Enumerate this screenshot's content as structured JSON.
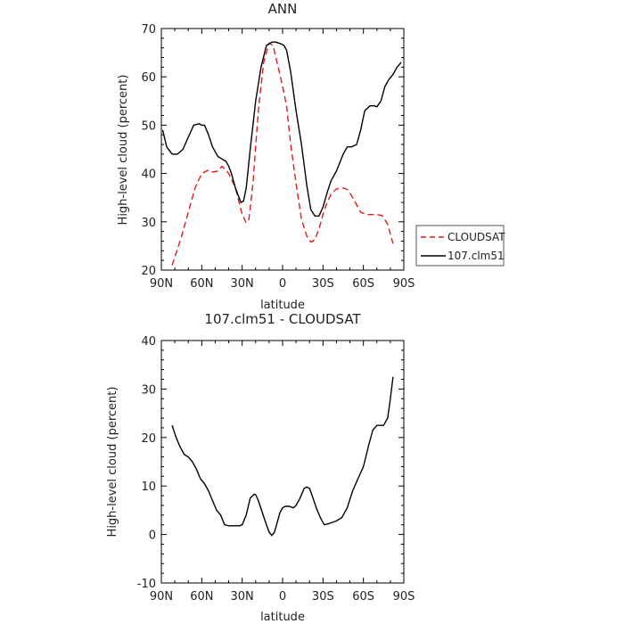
{
  "chart_data": [
    {
      "type": "line",
      "title": "ANN",
      "xlabel": "latitude",
      "ylabel": "High-level cloud (percent)",
      "xlim": [
        -90,
        90
      ],
      "ylim": [
        20,
        70
      ],
      "x_ticks": [
        -90,
        -60,
        -30,
        0,
        30,
        60,
        90
      ],
      "x_tick_labels": [
        "90N",
        "60N",
        "30N",
        "0",
        "30S",
        "60S",
        "90S"
      ],
      "y_ticks": [
        20,
        30,
        40,
        50,
        60,
        70
      ],
      "y_tick_labels": [
        "20",
        "30",
        "40",
        "50",
        "60",
        "70"
      ],
      "grid": false,
      "legend_position": "right",
      "series": [
        {
          "name": "CLOUDSAT",
          "color": "#e41a1c",
          "dash": "dashed",
          "x": [
            -82,
            -75,
            -70,
            -65,
            -60,
            -55,
            -52,
            -48,
            -45,
            -40,
            -35,
            -30,
            -27,
            -25,
            -22,
            -18,
            -14,
            -10,
            -7,
            -5,
            -2,
            0,
            3,
            6,
            10,
            14,
            18,
            21,
            24,
            27,
            30,
            33,
            36,
            40,
            45,
            48,
            51,
            54,
            58,
            62,
            66,
            70,
            74,
            78,
            82
          ],
          "y": [
            21,
            27,
            32,
            37,
            40,
            40.7,
            40.3,
            40.5,
            41.5,
            40,
            37,
            31.5,
            29.8,
            30.5,
            38,
            53,
            63,
            67,
            66.5,
            64,
            60.5,
            58,
            54,
            46,
            38,
            30.5,
            27,
            25.8,
            26.3,
            28.5,
            31.5,
            34,
            35.7,
            36.8,
            37,
            36.7,
            35.5,
            34,
            32,
            31.5,
            31.5,
            31.5,
            31.3,
            29.5,
            25.5
          ]
        },
        {
          "name": "107.clm51",
          "color": "#000000",
          "dash": "solid",
          "x": [
            -89,
            -86,
            -82,
            -78,
            -74,
            -70,
            -66,
            -62,
            -60,
            -58,
            -55,
            -52,
            -48,
            -45,
            -42,
            -40,
            -38,
            -35,
            -31,
            -29,
            -27,
            -24,
            -20,
            -16,
            -12,
            -8,
            -5,
            -3,
            -1,
            1,
            3,
            6,
            10,
            14,
            18,
            21,
            24,
            27,
            30,
            33,
            36,
            40,
            45,
            48,
            51,
            55,
            58,
            61,
            65,
            68,
            70,
            73,
            76,
            79,
            82,
            85,
            88
          ],
          "y": [
            49,
            45.5,
            44,
            44,
            45,
            47.5,
            50,
            50.3,
            50,
            50,
            48,
            45.5,
            43.5,
            43,
            42.5,
            41.5,
            40,
            37,
            34,
            34.3,
            37,
            45,
            55,
            62,
            66.5,
            67.2,
            67.2,
            67,
            66.8,
            66.5,
            65.5,
            61,
            53,
            46,
            37.5,
            32.5,
            31.2,
            31.2,
            33,
            36,
            38.5,
            40.5,
            44,
            45.5,
            45.5,
            46,
            49,
            53,
            54,
            54,
            53.8,
            55,
            58,
            59.5,
            60.5,
            62,
            63
          ]
        }
      ]
    },
    {
      "type": "line",
      "title": "107.clm51 - CLOUDSAT",
      "xlabel": "latitude",
      "ylabel": "High-level cloud (percent)",
      "xlim": [
        -90,
        90
      ],
      "ylim": [
        -10,
        40
      ],
      "x_ticks": [
        -90,
        -60,
        -30,
        0,
        30,
        60,
        90
      ],
      "x_tick_labels": [
        "90N",
        "60N",
        "30N",
        "0",
        "30S",
        "60S",
        "90S"
      ],
      "y_ticks": [
        -10,
        0,
        10,
        20,
        30,
        40
      ],
      "y_tick_labels": [
        "-10",
        "0",
        "10",
        "20",
        "30",
        "40"
      ],
      "grid": false,
      "series": [
        {
          "color": "#000000",
          "dash": "solid",
          "x": [
            -82,
            -79,
            -76,
            -73,
            -70,
            -67,
            -64,
            -61,
            -58,
            -55,
            -52,
            -49,
            -46,
            -43,
            -40,
            -38,
            -35,
            -32,
            -30,
            -27,
            -24,
            -21,
            -20,
            -18,
            -15,
            -12,
            -10,
            -8,
            -6,
            -4,
            -2,
            0,
            2,
            5,
            8,
            10,
            13,
            16,
            18,
            20,
            22,
            25,
            28,
            31,
            34,
            37,
            40,
            44,
            48,
            52,
            56,
            60,
            64,
            67,
            70,
            72,
            75,
            78,
            80,
            82
          ],
          "y": [
            22.5,
            20,
            18,
            16.5,
            16,
            15,
            13.5,
            11.5,
            10.5,
            9,
            7,
            5,
            4,
            2,
            1.8,
            1.8,
            1.8,
            1.8,
            2,
            4,
            7.5,
            8.3,
            8.2,
            7,
            4.5,
            2,
            0.5,
            -0.2,
            0.5,
            2.5,
            4.5,
            5.5,
            5.8,
            5.8,
            5.5,
            6,
            7.5,
            9.5,
            9.8,
            9.5,
            8,
            5.5,
            3.5,
            2,
            2.2,
            2.5,
            2.8,
            3.5,
            5.5,
            9,
            11.5,
            14,
            18.5,
            21.5,
            22.5,
            22.5,
            22.5,
            24,
            28,
            32.5
          ]
        }
      ]
    }
  ]
}
